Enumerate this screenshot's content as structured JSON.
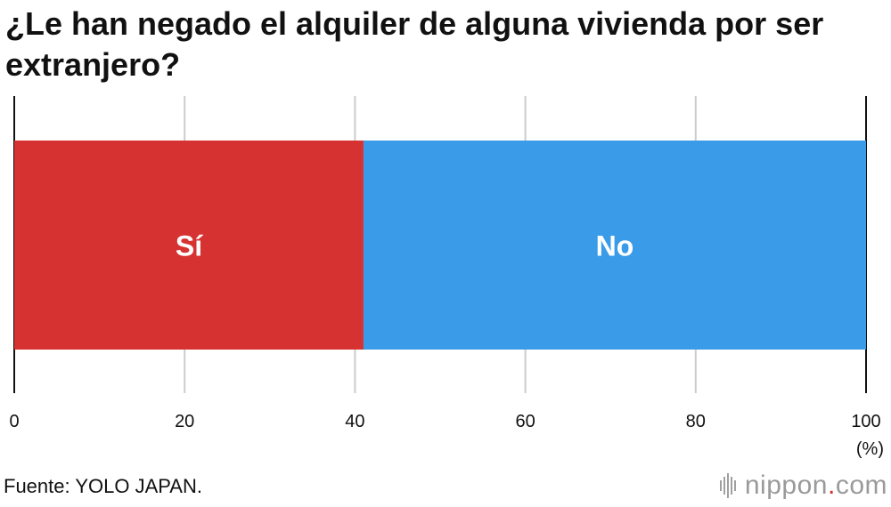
{
  "title": "¿Le han negado el alquiler de alguna vivienda por ser extranjero?",
  "unit": "(%)",
  "source": "Fuente: YOLO JAPAN.",
  "brand": {
    "name": "nippon",
    "dot": ".",
    "tld": "com"
  },
  "chart_data": {
    "type": "bar",
    "orientation": "horizontal-stacked",
    "segments": [
      {
        "label": "Sí",
        "value": 41,
        "color": "#d73232"
      },
      {
        "label": "No",
        "value": 59,
        "color": "#3a9be8"
      }
    ],
    "xlim": [
      0,
      100
    ],
    "xticks": [
      0,
      20,
      40,
      60,
      80,
      100
    ],
    "grid": true
  }
}
